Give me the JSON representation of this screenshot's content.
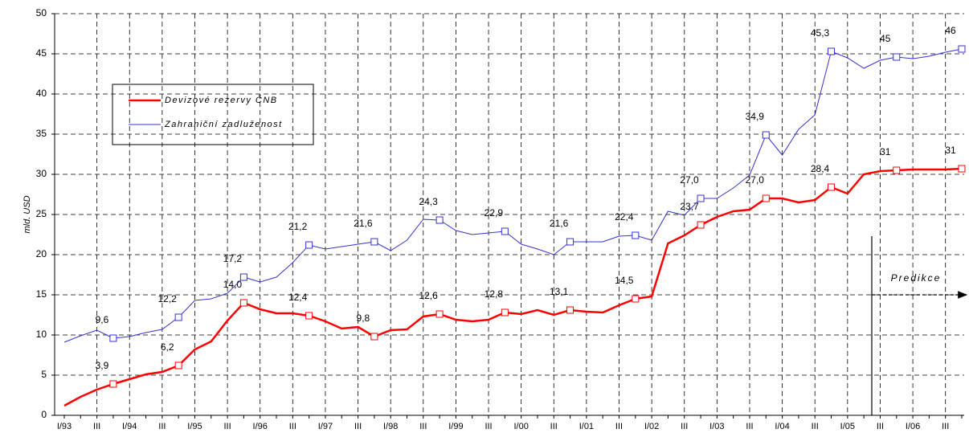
{
  "chart_data": {
    "type": "line",
    "y_label": "mld. USD",
    "annotation": "Predikce",
    "categories": [
      "I/93",
      null,
      "III",
      null,
      "I/94",
      null,
      "III",
      null,
      "I/95",
      null,
      "III",
      null,
      "I/96",
      null,
      "III",
      null,
      "I/97",
      null,
      "III",
      null,
      "I/98",
      null,
      "III",
      null,
      "I/99",
      null,
      "III",
      null,
      "I/00",
      null,
      "III",
      null,
      "I/01",
      null,
      "III",
      null,
      "I/02",
      null,
      "III",
      null,
      "I/03",
      null,
      "III",
      null,
      "I/04",
      null,
      "III",
      null,
      "I/05",
      null,
      "III",
      null,
      "I/06",
      null,
      "III",
      null
    ],
    "series": [
      {
        "name": "Devizové rezervy ČNB",
        "color": "#ff0000",
        "values": [
          1.2,
          2.3,
          3.2,
          3.9,
          4.5,
          5.1,
          5.4,
          6.2,
          8.2,
          9.2,
          11.8,
          14.0,
          13.2,
          12.7,
          12.7,
          12.4,
          11.7,
          10.8,
          11.0,
          9.8,
          10.6,
          10.7,
          12.3,
          12.6,
          11.9,
          11.7,
          11.9,
          12.8,
          12.6,
          13.1,
          12.5,
          13.1,
          12.9,
          12.8,
          13.7,
          14.5,
          14.8,
          21.4,
          22.4,
          23.7,
          24.7,
          25.4,
          25.6,
          27.0,
          27.0,
          26.5,
          26.8,
          28.4,
          27.6,
          30.0,
          30.4,
          30.5,
          30.6,
          30.6,
          30.6,
          30.7
        ],
        "value_labels": [
          null,
          null,
          null,
          "3,9",
          null,
          null,
          null,
          "6,2",
          null,
          null,
          null,
          "14,0",
          null,
          null,
          null,
          "12,4",
          null,
          null,
          null,
          "9,8",
          null,
          null,
          null,
          "12,6",
          null,
          null,
          null,
          "12,8",
          null,
          null,
          null,
          "13,1",
          null,
          null,
          null,
          "14,5",
          null,
          null,
          null,
          "23,7",
          null,
          null,
          null,
          "27,0",
          null,
          null,
          null,
          "28,4",
          null,
          null,
          null,
          "31",
          null,
          null,
          null,
          "31"
        ]
      },
      {
        "name": "Zahraniční zadluženost",
        "color": "#3333cc",
        "values": [
          9.1,
          9.9,
          10.6,
          9.6,
          9.8,
          10.3,
          10.7,
          12.2,
          14.3,
          14.5,
          15.2,
          17.2,
          16.6,
          17.2,
          19.0,
          21.2,
          20.7,
          21.0,
          21.3,
          21.6,
          20.5,
          21.8,
          24.4,
          24.3,
          23.0,
          22.5,
          22.7,
          22.9,
          21.3,
          20.7,
          20.0,
          21.6,
          21.6,
          21.6,
          22.3,
          22.4,
          21.8,
          25.4,
          24.9,
          27.0,
          27.0,
          28.3,
          29.9,
          34.9,
          32.4,
          35.6,
          37.4,
          45.3,
          44.5,
          43.2,
          44.2,
          44.6,
          44.4,
          44.7,
          45.2,
          45.6
        ],
        "value_labels": [
          null,
          null,
          null,
          "9,6",
          null,
          null,
          null,
          "12,2",
          null,
          null,
          null,
          "17,2",
          null,
          null,
          null,
          "21,2",
          null,
          null,
          null,
          "21,6",
          null,
          null,
          null,
          "24,3",
          null,
          null,
          null,
          "22,9",
          null,
          null,
          null,
          "21,6",
          null,
          null,
          null,
          "22,4",
          null,
          null,
          null,
          "27,0",
          null,
          null,
          null,
          "34,9",
          null,
          null,
          null,
          "45,3",
          null,
          null,
          null,
          "45",
          null,
          null,
          null,
          "46"
        ]
      }
    ],
    "ylim": [
      0,
      50
    ],
    "yticks": [
      0,
      5,
      10,
      15,
      20,
      25,
      30,
      35,
      40,
      45,
      50
    ],
    "grid": true
  }
}
